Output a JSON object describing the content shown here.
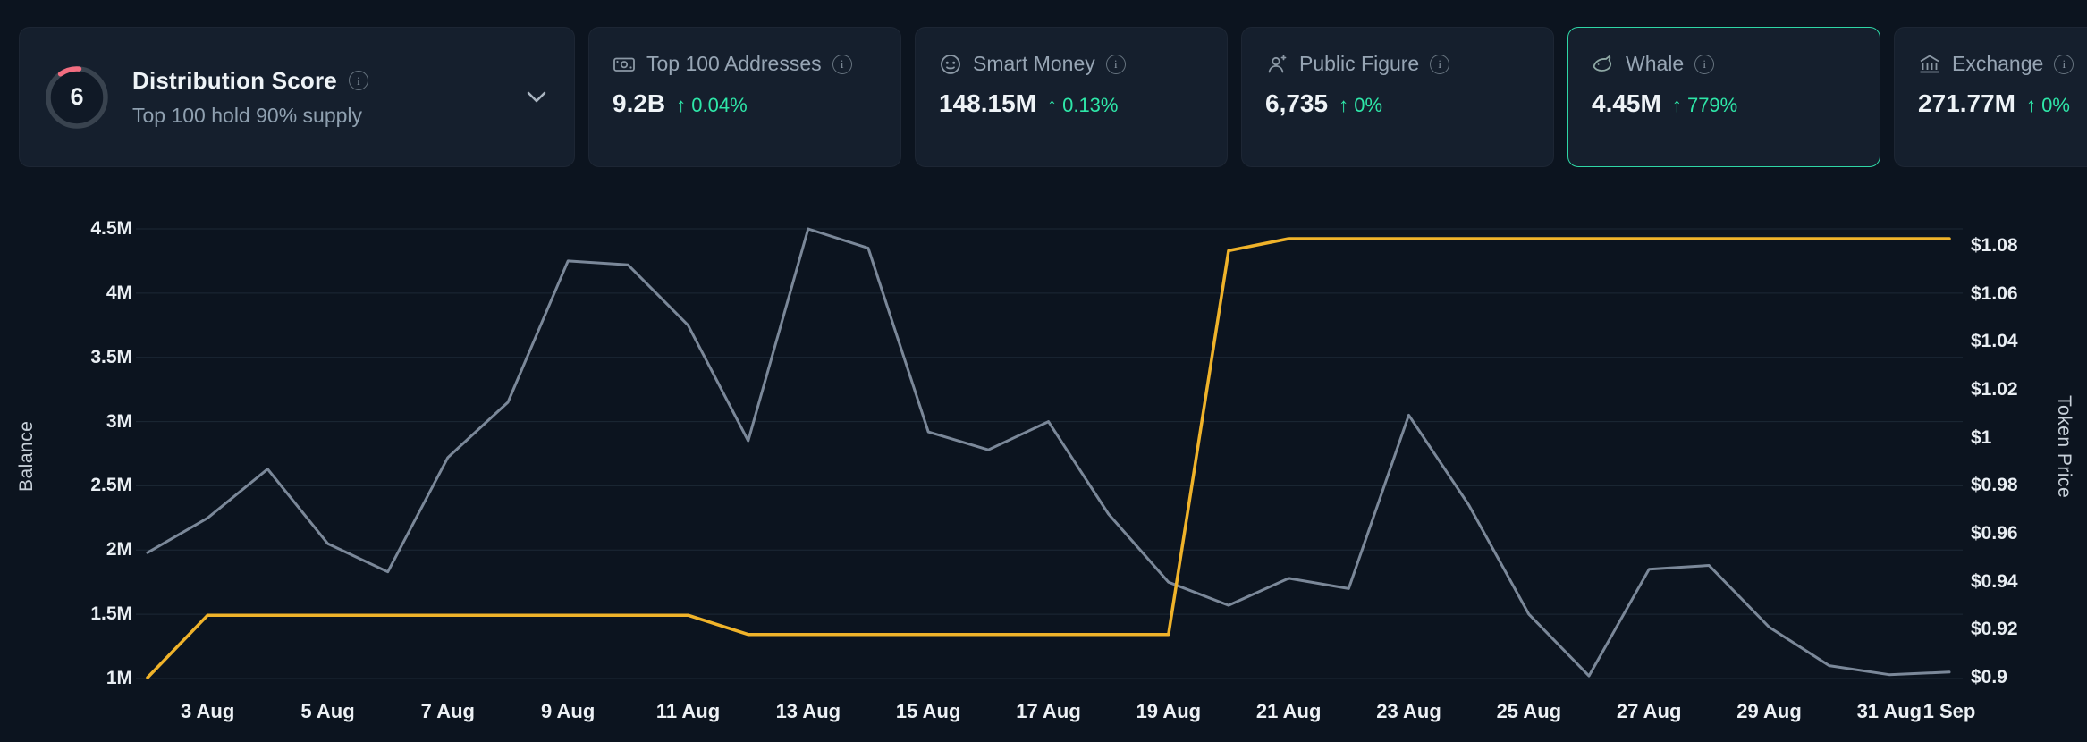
{
  "theme": {
    "page_bg": "#0c141f",
    "card_bg": "#151f2d",
    "card_selected_border": "#2fd6a5",
    "text_primary": "#eef3f7",
    "text_secondary": "#8fa0b0",
    "positive_green": "#2ee6a8",
    "gridline": "#1c2836",
    "gauge_ring": "#39434f",
    "gauge_arc": "#f26d80"
  },
  "header_cards": {
    "distribution": {
      "score": "6",
      "title": "Distribution Score",
      "subtitle": "Top 100 hold 90% supply"
    },
    "stats": [
      {
        "label": "Top 100 Addresses",
        "value": "9.2B",
        "change_arrow": "↑",
        "change": "0.04%"
      },
      {
        "label": "Smart Money",
        "value": "148.15M",
        "change_arrow": "↑",
        "change": "0.13%"
      },
      {
        "label": "Public Figure",
        "value": "6,735",
        "change_arrow": "↑",
        "change": "0%"
      },
      {
        "label": "Whale",
        "value": "4.45M",
        "change_arrow": "↑",
        "change": "779%"
      },
      {
        "label": "Exchange",
        "value": "271.77M",
        "change_arrow": "↑",
        "change": "0%"
      }
    ]
  },
  "chart_data": {
    "type": "line",
    "title": "",
    "legend": "none",
    "grid": "horizontal",
    "dates": [
      "2 Aug",
      "3 Aug",
      "4 Aug",
      "5 Aug",
      "6 Aug",
      "7 Aug",
      "8 Aug",
      "9 Aug",
      "10 Aug",
      "11 Aug",
      "12 Aug",
      "13 Aug",
      "14 Aug",
      "15 Aug",
      "16 Aug",
      "17 Aug",
      "18 Aug",
      "19 Aug",
      "20 Aug",
      "21 Aug",
      "22 Aug",
      "23 Aug",
      "24 Aug",
      "25 Aug",
      "26 Aug",
      "27 Aug",
      "28 Aug",
      "29 Aug",
      "30 Aug",
      "31 Aug",
      "1 Sep"
    ],
    "series": [
      {
        "name": "Balance",
        "axis": "left",
        "unit": "M",
        "color": "#7b8899",
        "width": 3,
        "values": [
          1.98,
          2.25,
          2.63,
          2.05,
          1.83,
          2.72,
          3.15,
          4.25,
          4.22,
          3.75,
          2.85,
          4.5,
          4.35,
          2.92,
          2.78,
          3.0,
          2.28,
          1.75,
          1.57,
          1.78,
          1.7,
          3.05,
          2.35,
          1.5,
          1.02,
          1.85,
          1.88,
          1.4,
          1.1,
          1.03,
          1.05
        ]
      },
      {
        "name": "Token Price",
        "axis": "right",
        "unit": "$",
        "color": "#f0b32a",
        "width": 3.5,
        "values": [
          0.9,
          0.926,
          0.926,
          0.926,
          0.926,
          0.926,
          0.926,
          0.926,
          0.926,
          0.926,
          0.918,
          0.918,
          0.918,
          0.918,
          0.918,
          0.918,
          0.918,
          0.918,
          1.078,
          1.083,
          1.083,
          1.083,
          1.083,
          1.083,
          1.083,
          1.083,
          1.083,
          1.083,
          1.083,
          1.083,
          1.083
        ]
      }
    ],
    "left_axis": {
      "label": "Balance",
      "range": [
        1,
        4.5
      ],
      "tick_values": [
        1,
        1.5,
        2,
        2.5,
        3,
        3.5,
        4,
        4.5
      ],
      "tick_labels": [
        "1M",
        "1.5M",
        "2M",
        "2.5M",
        "3M",
        "3.5M",
        "4M",
        "4.5M"
      ]
    },
    "right_axis": {
      "label": "Token Price",
      "range": [
        0.9,
        1.08
      ],
      "tick_values": [
        0.9,
        0.92,
        0.94,
        0.96,
        0.98,
        1,
        1.02,
        1.04,
        1.06,
        1.08
      ],
      "tick_labels": [
        "$0.9",
        "$0.92",
        "$0.94",
        "$0.96",
        "$0.98",
        "$1",
        "$1.02",
        "$1.04",
        "$1.06",
        "$1.08"
      ]
    },
    "x_ticks": [
      {
        "label": "3 Aug",
        "index": 1
      },
      {
        "label": "5 Aug",
        "index": 3
      },
      {
        "label": "7 Aug",
        "index": 5
      },
      {
        "label": "9 Aug",
        "index": 7
      },
      {
        "label": "11 Aug",
        "index": 9
      },
      {
        "label": "13 Aug",
        "index": 11
      },
      {
        "label": "15 Aug",
        "index": 13
      },
      {
        "label": "17 Aug",
        "index": 15
      },
      {
        "label": "19 Aug",
        "index": 17
      },
      {
        "label": "21 Aug",
        "index": 19
      },
      {
        "label": "23 Aug",
        "index": 21
      },
      {
        "label": "25 Aug",
        "index": 23
      },
      {
        "label": "27 Aug",
        "index": 25
      },
      {
        "label": "29 Aug",
        "index": 27
      },
      {
        "label": "31 Aug",
        "index": 29
      },
      {
        "label": "1 Sep",
        "index": 30
      }
    ]
  }
}
